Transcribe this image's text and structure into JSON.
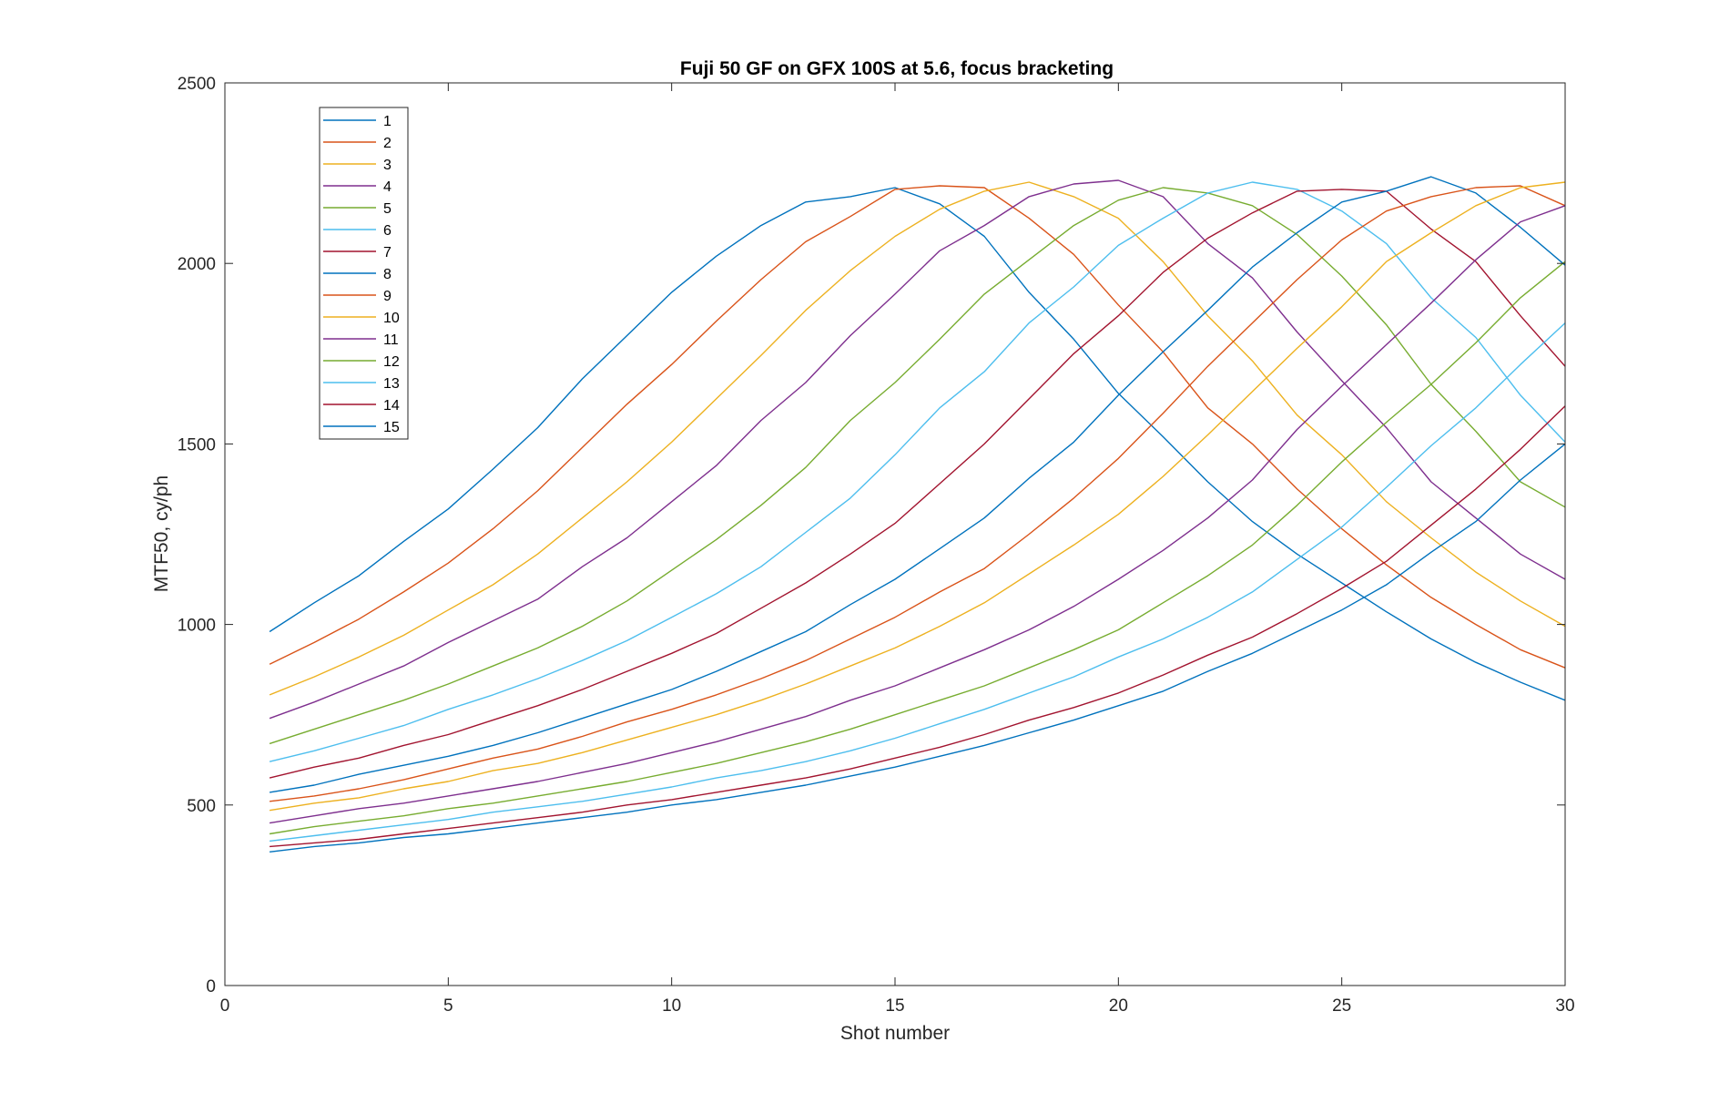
{
  "chart_data": {
    "type": "line",
    "title": "Fuji 50 GF on GFX 100S at 5.6, focus bracketing",
    "xlabel": "Shot number",
    "ylabel": "MTF50, cy/ph",
    "xlim": [
      0,
      30
    ],
    "ylim": [
      0,
      2500
    ],
    "xticks": [
      0,
      5,
      10,
      15,
      20,
      25,
      30
    ],
    "yticks": [
      0,
      500,
      1000,
      1500,
      2000,
      2500
    ],
    "grid": false,
    "legend_position": "top-left",
    "x": [
      1,
      2,
      3,
      4,
      5,
      6,
      7,
      8,
      9,
      10,
      11,
      12,
      13,
      14,
      15,
      16,
      17,
      18,
      19,
      20,
      21,
      22,
      23,
      24,
      25,
      26,
      27,
      28,
      29,
      30
    ],
    "series": [
      {
        "name": "1",
        "color": "#0072BD",
        "values": [
          980,
          1060,
          1135,
          1230,
          1320,
          1430,
          1545,
          1680,
          1800,
          1920,
          2020,
          2105,
          2170,
          2185,
          2210,
          2165,
          2075,
          1920,
          1790,
          1640,
          1520,
          1395,
          1285,
          1195,
          1115,
          1035,
          960,
          895,
          840,
          790
        ]
      },
      {
        "name": "2",
        "color": "#D95319",
        "values": [
          890,
          950,
          1015,
          1090,
          1170,
          1265,
          1370,
          1490,
          1610,
          1720,
          1840,
          1955,
          2060,
          2130,
          2205,
          2215,
          2210,
          2125,
          2025,
          1885,
          1755,
          1600,
          1500,
          1375,
          1265,
          1165,
          1075,
          1000,
          930,
          880
        ]
      },
      {
        "name": "3",
        "color": "#EDB120",
        "values": [
          805,
          855,
          910,
          970,
          1040,
          1110,
          1195,
          1295,
          1395,
          1505,
          1625,
          1745,
          1870,
          1980,
          2075,
          2150,
          2200,
          2225,
          2185,
          2125,
          2005,
          1855,
          1730,
          1580,
          1470,
          1340,
          1240,
          1145,
          1065,
          995
        ]
      },
      {
        "name": "4",
        "color": "#7E2F8E",
        "values": [
          740,
          785,
          835,
          885,
          950,
          1010,
          1070,
          1160,
          1240,
          1340,
          1440,
          1565,
          1670,
          1800,
          1915,
          2035,
          2105,
          2185,
          2220,
          2230,
          2185,
          2055,
          1960,
          1810,
          1675,
          1545,
          1395,
          1295,
          1195,
          1125
        ]
      },
      {
        "name": "5",
        "color": "#77AC30",
        "values": [
          670,
          710,
          750,
          790,
          835,
          885,
          935,
          995,
          1065,
          1150,
          1235,
          1330,
          1435,
          1565,
          1670,
          1790,
          1915,
          2010,
          2105,
          2175,
          2210,
          2195,
          2160,
          2080,
          1965,
          1830,
          1665,
          1535,
          1395,
          1325
        ]
      },
      {
        "name": "6",
        "color": "#4DBEEE",
        "values": [
          620,
          650,
          685,
          720,
          765,
          805,
          850,
          900,
          955,
          1020,
          1085,
          1160,
          1255,
          1350,
          1470,
          1600,
          1700,
          1835,
          1935,
          2050,
          2125,
          2195,
          2225,
          2205,
          2145,
          2055,
          1905,
          1795,
          1635,
          1505
        ]
      },
      {
        "name": "7",
        "color": "#A2142F",
        "values": [
          575,
          605,
          630,
          665,
          695,
          735,
          775,
          820,
          870,
          920,
          975,
          1045,
          1115,
          1195,
          1280,
          1390,
          1500,
          1625,
          1750,
          1855,
          1975,
          2070,
          2140,
          2200,
          2205,
          2200,
          2095,
          2005,
          1855,
          1715
        ]
      },
      {
        "name": "8",
        "color": "#0072BD",
        "values": [
          535,
          555,
          585,
          610,
          635,
          665,
          700,
          740,
          780,
          820,
          870,
          925,
          980,
          1055,
          1125,
          1210,
          1295,
          1405,
          1505,
          1635,
          1755,
          1870,
          1990,
          2085,
          2170,
          2200,
          2240,
          2195,
          2100,
          1995
        ]
      },
      {
        "name": "9",
        "color": "#D95319",
        "values": [
          510,
          525,
          545,
          570,
          600,
          630,
          655,
          690,
          730,
          765,
          805,
          850,
          900,
          960,
          1020,
          1090,
          1155,
          1250,
          1350,
          1460,
          1585,
          1715,
          1835,
          1955,
          2065,
          2145,
          2185,
          2210,
          2215,
          2160
        ]
      },
      {
        "name": "10",
        "color": "#EDB120",
        "values": [
          485,
          505,
          520,
          545,
          565,
          595,
          615,
          645,
          680,
          715,
          750,
          790,
          835,
          885,
          935,
          995,
          1060,
          1140,
          1220,
          1305,
          1410,
          1525,
          1645,
          1765,
          1880,
          2005,
          2085,
          2160,
          2210,
          2225
        ]
      },
      {
        "name": "11",
        "color": "#7E2F8E",
        "values": [
          450,
          470,
          490,
          505,
          525,
          545,
          565,
          590,
          615,
          645,
          675,
          710,
          745,
          790,
          830,
          880,
          930,
          985,
          1050,
          1125,
          1205,
          1295,
          1400,
          1540,
          1660,
          1775,
          1890,
          2010,
          2115,
          2160
        ]
      },
      {
        "name": "12",
        "color": "#77AC30",
        "values": [
          420,
          440,
          455,
          470,
          490,
          505,
          525,
          545,
          565,
          590,
          615,
          645,
          675,
          710,
          750,
          790,
          830,
          880,
          930,
          985,
          1060,
          1135,
          1220,
          1330,
          1450,
          1560,
          1665,
          1780,
          1905,
          2005
        ]
      },
      {
        "name": "13",
        "color": "#4DBEEE",
        "values": [
          400,
          415,
          430,
          445,
          460,
          480,
          495,
          510,
          530,
          550,
          575,
          595,
          620,
          650,
          685,
          725,
          765,
          810,
          855,
          910,
          960,
          1020,
          1090,
          1180,
          1270,
          1380,
          1495,
          1600,
          1720,
          1835
        ]
      },
      {
        "name": "14",
        "color": "#A2142F",
        "values": [
          385,
          395,
          405,
          420,
          435,
          450,
          465,
          480,
          500,
          515,
          535,
          555,
          575,
          600,
          630,
          660,
          695,
          735,
          770,
          810,
          860,
          915,
          965,
          1030,
          1100,
          1175,
          1275,
          1375,
          1485,
          1605
        ]
      },
      {
        "name": "15",
        "color": "#0072BD",
        "values": [
          370,
          385,
          395,
          410,
          420,
          435,
          450,
          465,
          480,
          500,
          515,
          535,
          555,
          580,
          605,
          635,
          665,
          700,
          735,
          775,
          815,
          870,
          920,
          980,
          1040,
          1110,
          1200,
          1285,
          1400,
          1500
        ]
      }
    ]
  }
}
